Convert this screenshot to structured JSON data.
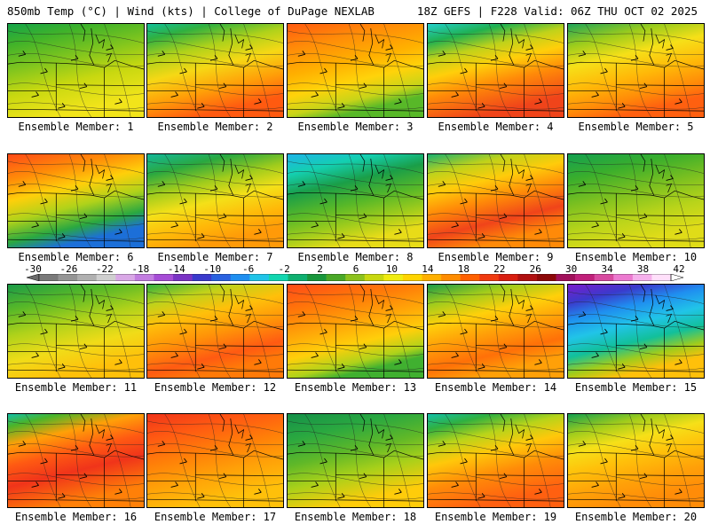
{
  "header": {
    "left": "850mb Temp (°C) | Wind (kts) | College of DuPage NEXLAB",
    "right": "18Z GEFS | F228 Valid: 06Z THU OCT 02 2025"
  },
  "colorbar": {
    "labels": [
      "-30",
      "-26",
      "-22",
      "-18",
      "-14",
      "-10",
      "-6",
      "-2",
      "2",
      "6",
      "10",
      "14",
      "18",
      "22",
      "26",
      "30",
      "34",
      "38",
      "42"
    ],
    "colors": [
      "#7a7a7a",
      "#959595",
      "#b0b0b0",
      "#cfcfcf",
      "#d9a8e6",
      "#c27de0",
      "#a64dd6",
      "#7a33c4",
      "#3a3acc",
      "#2a62e0",
      "#1f8ff0",
      "#21c4e8",
      "#12d6b0",
      "#0fb070",
      "#18963c",
      "#4aa828",
      "#8cc21e",
      "#c8d810",
      "#f0ec10",
      "#ffd400",
      "#ffb000",
      "#ff8c00",
      "#ff6000",
      "#f03a10",
      "#d81e10",
      "#b01010",
      "#8c0808",
      "#a0105a",
      "#c0207a",
      "#d84aa0",
      "#ec7ad0",
      "#f6b0ec",
      "#ffe0fa"
    ]
  },
  "panels": [
    {
      "label": "Ensemble Member: 1",
      "scheme": [
        [
          "#15a44a",
          0
        ],
        [
          "#3fb22a",
          20
        ],
        [
          "#80c51e",
          45
        ],
        [
          "#c8d810",
          70
        ],
        [
          "#f2e41a",
          100
        ]
      ]
    },
    {
      "label": "Ensemble Member: 2",
      "scheme": [
        [
          "#12c09a",
          0
        ],
        [
          "#30b040",
          15
        ],
        [
          "#b0d21a",
          35
        ],
        [
          "#f6d815",
          55
        ],
        [
          "#ff9e08",
          78
        ],
        [
          "#ff5a10",
          100
        ]
      ]
    },
    {
      "label": "Ensemble Member: 3",
      "scheme": [
        [
          "#ff5a10",
          0
        ],
        [
          "#ff8c08",
          25
        ],
        [
          "#ffb000",
          50
        ],
        [
          "#ffd30a",
          70
        ],
        [
          "#c8d418",
          88
        ],
        [
          "#58b828",
          100
        ]
      ]
    },
    {
      "label": "Ensemble Member: 4",
      "scheme": [
        [
          "#24d0cc",
          0
        ],
        [
          "#20b050",
          18
        ],
        [
          "#c0d21a",
          35
        ],
        [
          "#ffcf0a",
          52
        ],
        [
          "#ff8a08",
          72
        ],
        [
          "#f0441a",
          100
        ]
      ]
    },
    {
      "label": "Ensemble Member: 5",
      "scheme": [
        [
          "#1fa45a",
          0
        ],
        [
          "#9ccc1c",
          22
        ],
        [
          "#f6e018",
          42
        ],
        [
          "#ffb808",
          65
        ],
        [
          "#ff8c08",
          85
        ],
        [
          "#ff6010",
          100
        ]
      ]
    },
    {
      "label": "Ensemble Member: 6",
      "scheme": [
        [
          "#ff4a18",
          0
        ],
        [
          "#ff8c08",
          25
        ],
        [
          "#ffcf0a",
          45
        ],
        [
          "#b0d21a",
          65
        ],
        [
          "#2aa840",
          85
        ],
        [
          "#1c6fd8",
          100
        ]
      ]
    },
    {
      "label": "Ensemble Member: 7",
      "scheme": [
        [
          "#14b89a",
          0
        ],
        [
          "#2aa840",
          20
        ],
        [
          "#a0cc1c",
          40
        ],
        [
          "#f4e018",
          60
        ],
        [
          "#ffb808",
          82
        ],
        [
          "#ff9a08",
          100
        ]
      ]
    },
    {
      "label": "Ensemble Member: 8",
      "scheme": [
        [
          "#1fb4e8",
          0
        ],
        [
          "#14cfb0",
          20
        ],
        [
          "#1a9e48",
          40
        ],
        [
          "#58b828",
          62
        ],
        [
          "#a0cc1c",
          82
        ],
        [
          "#e8dc18",
          100
        ]
      ]
    },
    {
      "label": "Ensemble Member: 9",
      "scheme": [
        [
          "#1ab070",
          0
        ],
        [
          "#c0d21a",
          20
        ],
        [
          "#ffcc0a",
          38
        ],
        [
          "#ff8a08",
          58
        ],
        [
          "#f0441a",
          80
        ],
        [
          "#ff8a08",
          100
        ]
      ]
    },
    {
      "label": "Ensemble Member: 10",
      "scheme": [
        [
          "#14a050",
          0
        ],
        [
          "#3aae2c",
          25
        ],
        [
          "#7cc020",
          50
        ],
        [
          "#b8d41a",
          75
        ],
        [
          "#e0dc18",
          100
        ]
      ]
    },
    {
      "label": "Ensemble Member: 11",
      "scheme": [
        [
          "#1a9a48",
          0
        ],
        [
          "#58b828",
          25
        ],
        [
          "#b0d21a",
          50
        ],
        [
          "#f0dc18",
          75
        ],
        [
          "#ffc00a",
          100
        ]
      ]
    },
    {
      "label": "Ensemble Member: 12",
      "scheme": [
        [
          "#30b040",
          0
        ],
        [
          "#c0d21a",
          20
        ],
        [
          "#ffc00a",
          40
        ],
        [
          "#ff9408",
          62
        ],
        [
          "#ff5a12",
          85
        ],
        [
          "#ff7a08",
          100
        ]
      ]
    },
    {
      "label": "Ensemble Member: 13",
      "scheme": [
        [
          "#ff4a18",
          0
        ],
        [
          "#ff7a08",
          28
        ],
        [
          "#ffa808",
          52
        ],
        [
          "#ffcf0a",
          72
        ],
        [
          "#b0d21a",
          90
        ],
        [
          "#40b030",
          100
        ]
      ]
    },
    {
      "label": "Ensemble Member: 14",
      "scheme": [
        [
          "#1a9a48",
          0
        ],
        [
          "#a0cc1c",
          20
        ],
        [
          "#ffd00a",
          40
        ],
        [
          "#ffa008",
          60
        ],
        [
          "#ff7008",
          82
        ],
        [
          "#ffa008",
          100
        ]
      ]
    },
    {
      "label": "Ensemble Member: 15",
      "scheme": [
        [
          "#7a1ccc",
          0
        ],
        [
          "#3a3acc",
          18
        ],
        [
          "#1f8ff0",
          34
        ],
        [
          "#21c4e8",
          52
        ],
        [
          "#12c09a",
          70
        ],
        [
          "#a0cc1c",
          86
        ],
        [
          "#ffc00a",
          100
        ]
      ]
    },
    {
      "label": "Ensemble Member: 16",
      "scheme": [
        [
          "#14c0a8",
          0
        ],
        [
          "#4ab42a",
          12
        ],
        [
          "#ffa008",
          30
        ],
        [
          "#ff5a12",
          50
        ],
        [
          "#f0341a",
          70
        ],
        [
          "#ff8008",
          100
        ]
      ]
    },
    {
      "label": "Ensemble Member: 17",
      "scheme": [
        [
          "#f0341a",
          0
        ],
        [
          "#ff5a12",
          25
        ],
        [
          "#ff8008",
          50
        ],
        [
          "#ffa008",
          72
        ],
        [
          "#ffc00a",
          100
        ]
      ]
    },
    {
      "label": "Ensemble Member: 18",
      "scheme": [
        [
          "#15904a",
          0
        ],
        [
          "#2aa840",
          25
        ],
        [
          "#60b828",
          50
        ],
        [
          "#a8d01a",
          72
        ],
        [
          "#ffcc0a",
          100
        ]
      ]
    },
    {
      "label": "Ensemble Member: 19",
      "scheme": [
        [
          "#14c0a8",
          0
        ],
        [
          "#30b040",
          15
        ],
        [
          "#b8d41a",
          32
        ],
        [
          "#ffc80a",
          50
        ],
        [
          "#ff8c08",
          72
        ],
        [
          "#ff6010",
          100
        ]
      ]
    },
    {
      "label": "Ensemble Member: 20",
      "scheme": [
        [
          "#14a050",
          0
        ],
        [
          "#a0cc1c",
          20
        ],
        [
          "#f6e018",
          38
        ],
        [
          "#ffc00a",
          58
        ],
        [
          "#ffa008",
          80
        ],
        [
          "#ff8c08",
          100
        ]
      ]
    }
  ]
}
